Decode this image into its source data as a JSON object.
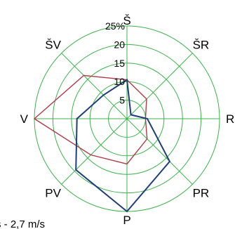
{
  "chart_data": {
    "type": "radar",
    "directions": [
      "Š",
      "ŠR",
      "R",
      "PR",
      "P",
      "PV",
      "V",
      "ŠV"
    ],
    "radial_ticks": [
      "5",
      "10",
      "15",
      "20",
      "25%"
    ],
    "rlim": [
      0,
      25
    ],
    "grid": true,
    "grid_color": "#3cb44b",
    "series": [
      {
        "color": "#1f3f7a",
        "values": [
          10.5,
          1.5,
          5.5,
          16.3,
          25.0,
          19.5,
          13.5,
          9.0
        ]
      },
      {
        "color": "#b03a48",
        "values": [
          10.5,
          7.5,
          5.0,
          7.7,
          12.2,
          13.8,
          25.0,
          16.5
        ]
      }
    ],
    "legend": {
      "partial_text": "s - 2,7 m/s"
    }
  }
}
